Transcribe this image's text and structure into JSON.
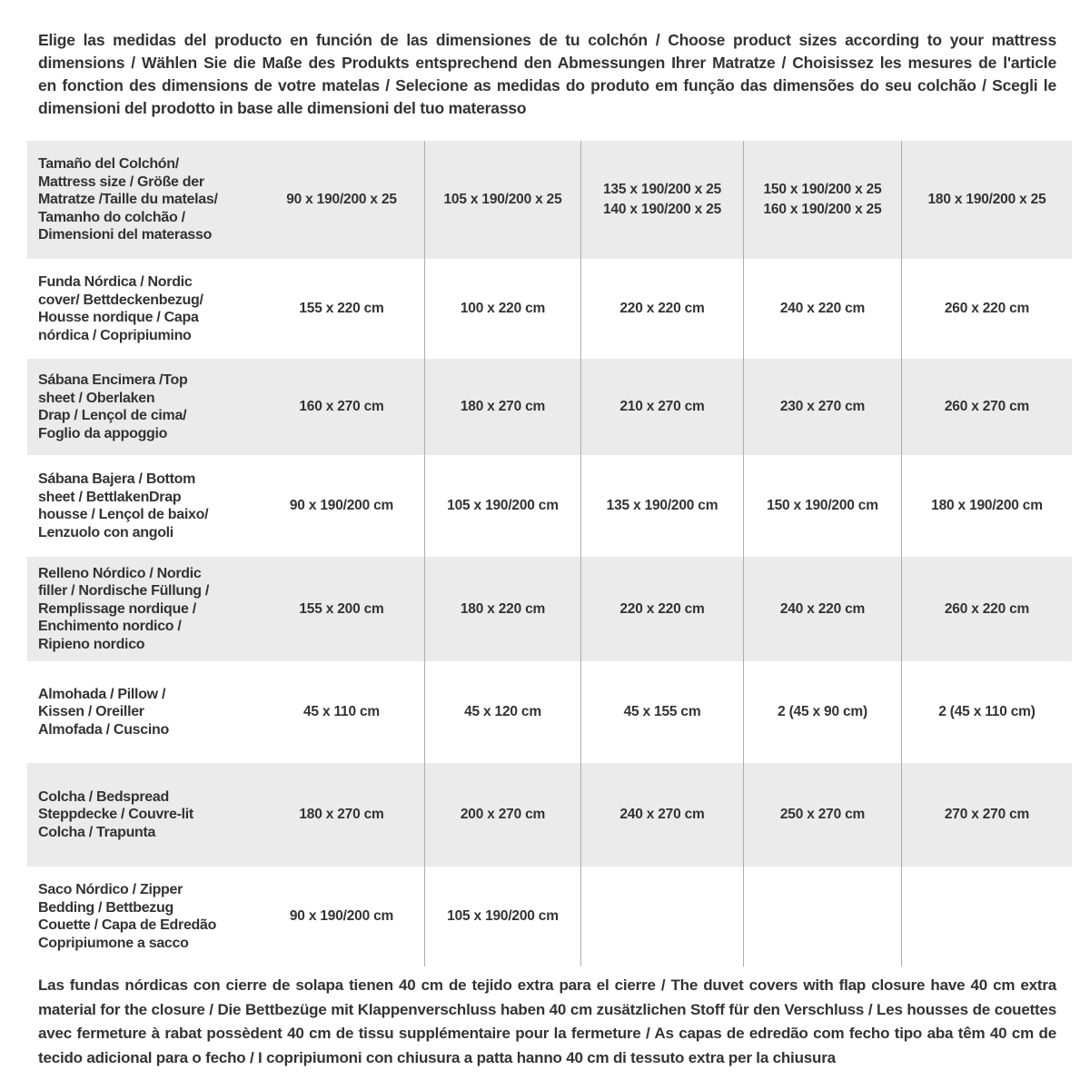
{
  "appearance": {
    "row_band_gray": "#ebebeb",
    "row_band_white": "#ffffff",
    "column_divider": "#aeaeae",
    "text_color": "#333333"
  },
  "intro": {
    "lines": [
      "Elige las medidas del producto en función de las dimensiones de tu colchón / Choose product sizes according to your mattress",
      "dimensions / Wählen Sie die Maße des Produkts entsprechend den Abmessungen Ihrer Matratze / Choisissez les mesures de l'article",
      "en fonction des dimensions de votre matelas / Selecione as medidas do produto em função das dimensões do seu colchão / Scegli le",
      "dimensioni del prodotto in base alle dimensioni del tuo materasso"
    ]
  },
  "table": {
    "header": {
      "label_lines": [
        "Tamaño del Colchón/",
        "Mattress size / Größe der",
        "Matratze /Taille du matelas/",
        "Tamanho do colchão /",
        "Dimensioni del materasso"
      ],
      "columns": [
        [
          "90 x 190/200 x 25"
        ],
        [
          "105 x 190/200 x 25"
        ],
        [
          "135 x 190/200 x 25",
          "140 x 190/200 x 25"
        ],
        [
          "150 x 190/200 x 25",
          "160 x 190/200 x 25"
        ],
        [
          "180 x 190/200 x 25"
        ]
      ]
    },
    "rows": [
      {
        "name": "funda-nordica",
        "label_lines": [
          "Funda Nórdica /  Nordic",
          "cover/ Bettdeckenbezug/",
          "Housse nordique  / Capa",
          "nórdica / Copripiumino"
        ],
        "values": [
          "155 x 220 cm",
          "100 x 220 cm",
          "220 x 220 cm",
          "240 x 220 cm",
          "260 x 220 cm"
        ]
      },
      {
        "name": "sabana-encimera",
        "label_lines": [
          "Sábana Encimera /Top",
          "sheet / Oberlaken",
          "Drap / Lençol de cima/",
          "Foglio da appoggio"
        ],
        "values": [
          "160 x 270 cm",
          "180 x 270 cm",
          "210 x 270 cm",
          "230 x 270 cm",
          "260 x 270 cm"
        ]
      },
      {
        "name": "sabana-bajera",
        "label_lines": [
          "Sábana Bajera / Bottom",
          "sheet / BettlakenDrap",
          "housse / Lençol de baixo/",
          "Lenzuolo con angoli"
        ],
        "values": [
          "90 x 190/200 cm",
          "105 x 190/200 cm",
          "135 x 190/200 cm",
          "150 x 190/200 cm",
          "180 x 190/200 cm"
        ]
      },
      {
        "name": "relleno-nordico",
        "label_lines": [
          "Relleno Nórdico / Nordic",
          "filler / Nordische Füllung /",
          "Remplissage nordique /",
          "Enchimento nordico /",
          "Ripieno nordico"
        ],
        "values": [
          "155 x 200 cm",
          "180 x 220 cm",
          "220 x 220 cm",
          "240 x 220 cm",
          "260 x 220 cm"
        ]
      },
      {
        "name": "almohada",
        "label_lines": [
          "Almohada  / Pillow /",
          "Kissen / Oreiller",
          "Almofada / Cuscino"
        ],
        "values": [
          "45 x 110 cm",
          "45 x 120 cm",
          "45 x 155 cm",
          "2 (45 x 90 cm)",
          "2 (45 x 110 cm)"
        ]
      },
      {
        "name": "colcha",
        "label_lines": [
          "Colcha / Bedspread",
          "Steppdecke / Couvre-lit",
          "Colcha / Trapunta"
        ],
        "values": [
          "180 x 270 cm",
          "200 x 270 cm",
          "240 x 270 cm",
          "250 x 270 cm",
          "270 x 270 cm"
        ]
      },
      {
        "name": "saco-nordico",
        "label_lines": [
          "Saco Nórdico / Zipper",
          "Bedding / Bettbezug",
          "Couette  / Capa de Edredão",
          "Copripiumone a sacco"
        ],
        "values": [
          "90 x 190/200 cm",
          "105 x 190/200 cm",
          "",
          "",
          ""
        ]
      }
    ]
  },
  "footnote": {
    "lines": [
      "Las fundas nórdicas con cierre de solapa tienen 40 cm de tejido extra para el cierre  / The duvet covers with flap closure have 40 cm extra",
      "material for the closure / Die Bettbezüge mit Klappenverschluss haben 40 cm zusätzlichen Stoff für den Verschluss / Les housses de couettes",
      "avec fermeture à rabat possèdent 40 cm de tissu supplémentaire pour la fermeture / As capas de edredão com fecho tipo aba têm 40 cm de",
      "tecido adicional para o fecho / I copripiumoni con chiusura a patta hanno 40 cm di tessuto extra per la chiusura"
    ]
  }
}
